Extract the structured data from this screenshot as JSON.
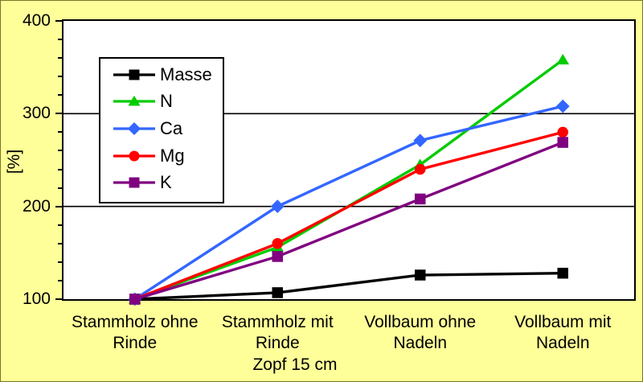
{
  "chart_data": {
    "type": "line",
    "title": "",
    "ylabel": "[%]",
    "xlabel": "",
    "x_note": "Zopf 15 cm",
    "ylim": [
      100,
      400
    ],
    "y_major_ticks": [
      100,
      200,
      300,
      400
    ],
    "y_minor_step": 20,
    "grid": "horizontal-major",
    "legend_position": "inside-top-left",
    "background_color": "#FFFF99",
    "plot_background_color": "#FFFFFF",
    "axis_color": "#000000",
    "categories": [
      "Stammholz ohne Rinde",
      "Stammholz mit Rinde",
      "Vollbaum ohne Nadeln",
      "Vollbaum mit Nadeln"
    ],
    "category_lines": [
      [
        "Stammholz ohne",
        "Rinde"
      ],
      [
        "Stammholz mit",
        "Rinde"
      ],
      [
        "Vollbaum ohne",
        "Nadeln"
      ],
      [
        "Vollbaum mit",
        "Nadeln"
      ]
    ],
    "series": [
      {
        "name": "Masse",
        "color": "#000000",
        "marker": "square",
        "values": [
          100,
          107,
          126,
          128
        ]
      },
      {
        "name": "N",
        "color": "#00CC00",
        "marker": "triangle",
        "values": [
          100,
          156,
          245,
          358
        ]
      },
      {
        "name": "Ca",
        "color": "#3366FF",
        "marker": "diamond",
        "values": [
          100,
          200,
          271,
          308
        ]
      },
      {
        "name": "Mg",
        "color": "#FF0000",
        "marker": "circle",
        "values": [
          100,
          160,
          240,
          280
        ]
      },
      {
        "name": "K",
        "color": "#800080",
        "marker": "square",
        "values": [
          100,
          146,
          208,
          269
        ]
      }
    ]
  }
}
